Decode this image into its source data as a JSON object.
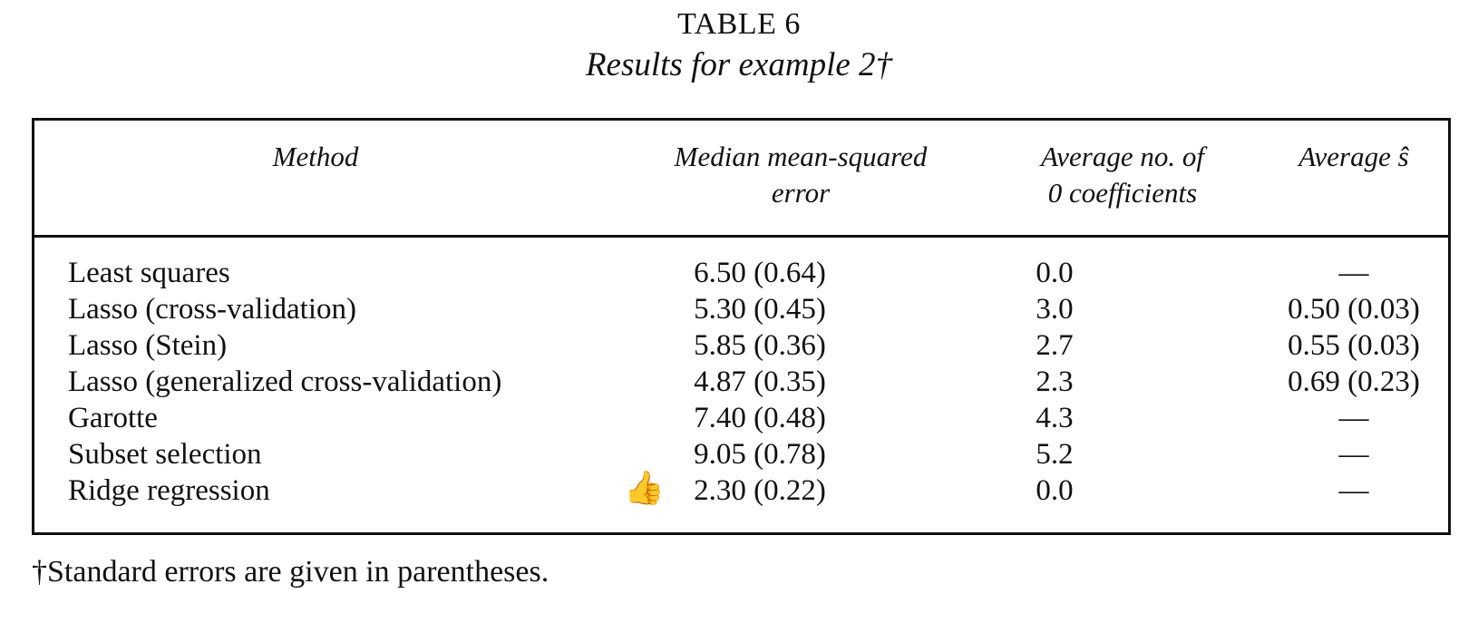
{
  "table": {
    "label": "TABLE 6",
    "title": "Results for example 2†",
    "headers": {
      "method": "Method",
      "mse_line1": "Median mean-squared",
      "mse_line2": "error",
      "zero_line1": "Average no. of",
      "zero_line2": "0 coefficients",
      "s_hat": "Average ŝ"
    },
    "rows": [
      {
        "method": "Least squares",
        "mse": "6.50 (0.64)",
        "zero": "0.0",
        "s": "—"
      },
      {
        "method": "Lasso (cross-validation)",
        "mse": "5.30 (0.45)",
        "zero": "3.0",
        "s": "0.50 (0.03)"
      },
      {
        "method": "Lasso (Stein)",
        "mse": "5.85 (0.36)",
        "zero": "2.7",
        "s": "0.55 (0.03)"
      },
      {
        "method": "Lasso (generalized cross-validation)",
        "mse": "4.87 (0.35)",
        "zero": "2.3",
        "s": "0.69 (0.23)"
      },
      {
        "method": "Garotte",
        "mse": "7.40 (0.48)",
        "zero": "4.3",
        "s": "—"
      },
      {
        "method": "Subset selection",
        "mse": "9.05 (0.78)",
        "zero": "5.2",
        "s": "—"
      },
      {
        "method": "Ridge regression",
        "mse": "2.30 (0.22)",
        "zero": "0.0",
        "s": "—"
      }
    ],
    "annotation_icon": "thumbs-up-icon",
    "annotation_glyph": "👍",
    "footnote": "†Standard errors are given in parentheses."
  }
}
